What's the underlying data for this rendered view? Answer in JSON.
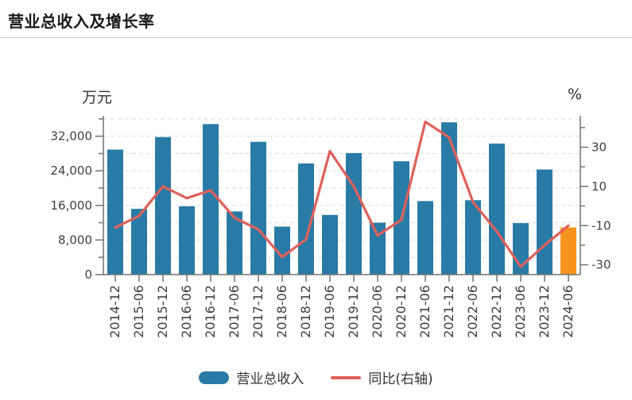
{
  "header": {
    "title": "营业总收入及增长率"
  },
  "colors": {
    "bar_blue": "#2a7aa6",
    "bar_orange": "#f7941f",
    "line_red": "#e0605a",
    "axis": "#737373",
    "grid": "#d9d9d9",
    "tick_text": "#404040",
    "title_text": "#1a1a1a",
    "header_divider": "#cccccc"
  },
  "chart_data": {
    "type": "bar",
    "title": "营业总收入及增长率",
    "categories": [
      "2014-12",
      "2015-06",
      "2015-12",
      "2016-06",
      "2016-12",
      "2017-06",
      "2017-12",
      "2018-06",
      "2018-12",
      "2019-06",
      "2019-12",
      "2020-06",
      "2020-12",
      "2021-06",
      "2021-12",
      "2022-06",
      "2022-12",
      "2023-06",
      "2023-12",
      "2024-06"
    ],
    "series": [
      {
        "name": "营业总收入",
        "type": "bar",
        "axis": "left",
        "unit": "万元",
        "color": "#2a7aa6",
        "last_bar_color": "#f7941f",
        "values": [
          28900,
          15200,
          31800,
          15800,
          34800,
          14600,
          30700,
          11100,
          25700,
          13800,
          28100,
          12000,
          26200,
          17000,
          35200,
          17200,
          30300,
          11900,
          24300,
          10900
        ]
      },
      {
        "name": "同比(右轴)",
        "type": "line",
        "axis": "right",
        "unit": "%",
        "color": "#e0605a",
        "values": [
          -11,
          -5,
          10,
          4,
          8,
          -6,
          -12,
          -26,
          -17,
          28,
          10,
          -15,
          -7,
          43,
          35,
          2,
          -13,
          -31,
          -20,
          -10
        ]
      }
    ],
    "left_axis": {
      "label": "万元",
      "min": 0,
      "max": 36700,
      "gridline_step": 4000,
      "major_ticks": [
        {
          "value": 0,
          "label": "0"
        },
        {
          "value": 8000,
          "label": "8,000"
        },
        {
          "value": 16000,
          "label": "16,000"
        },
        {
          "value": 24000,
          "label": "24,000"
        },
        {
          "value": 32000,
          "label": "32,000"
        }
      ],
      "minor_ticks": [
        4000,
        12000,
        20000,
        28000,
        36000
      ]
    },
    "right_axis": {
      "label": "%",
      "min": -35,
      "max": 46,
      "major_ticks": [
        {
          "value": -30,
          "label": "-30"
        },
        {
          "value": -10,
          "label": "-10"
        },
        {
          "value": 10,
          "label": "10"
        },
        {
          "value": 30,
          "label": "30"
        }
      ],
      "minor_ticks": [
        -20,
        0,
        20,
        40
      ]
    },
    "grid": "horizontal-dashed",
    "legend_position": "bottom"
  },
  "legend": {
    "items": [
      {
        "label": "营业总收入",
        "swatch": "bar"
      },
      {
        "label": "同比(右轴)",
        "swatch": "line"
      }
    ]
  }
}
